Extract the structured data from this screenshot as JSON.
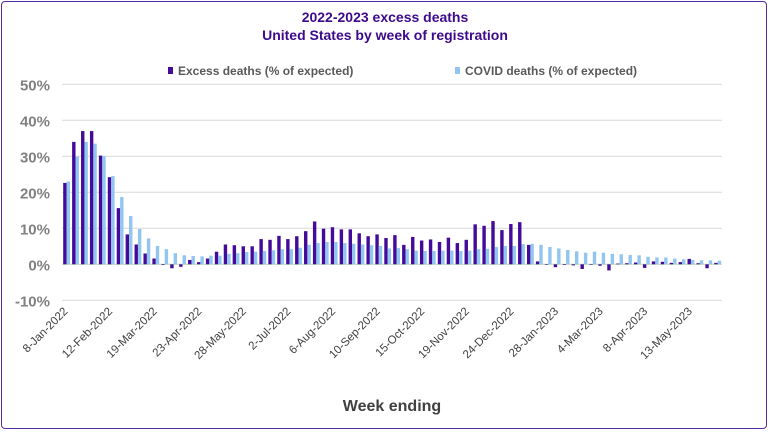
{
  "chart_data": {
    "type": "bar",
    "title": "2022-2023 excess deaths",
    "subtitle": "United States by week of registration",
    "xlabel": "Week ending",
    "ylabel": "",
    "ylim": [
      -10,
      50
    ],
    "yticks": [
      "-10%",
      "0%",
      "10%",
      "20%",
      "30%",
      "40%",
      "50%"
    ],
    "ytick_values": [
      -10,
      0,
      10,
      20,
      30,
      40,
      50
    ],
    "grid": true,
    "legend": "top-center",
    "xtick_every": 5,
    "categories": [
      "8-Jan-2022",
      "15-Jan-2022",
      "22-Jan-2022",
      "29-Jan-2022",
      "5-Feb-2022",
      "12-Feb-2022",
      "19-Feb-2022",
      "26-Feb-2022",
      "5-Mar-2022",
      "12-Mar-2022",
      "19-Mar-2022",
      "26-Mar-2022",
      "2-Apr-2022",
      "9-Apr-2022",
      "16-Apr-2022",
      "23-Apr-2022",
      "30-Apr-2022",
      "7-May-2022",
      "14-May-2022",
      "21-May-2022",
      "28-May-2022",
      "4-Jun-2022",
      "11-Jun-2022",
      "18-Jun-2022",
      "25-Jun-2022",
      "2-Jul-2022",
      "9-Jul-2022",
      "16-Jul-2022",
      "23-Jul-2022",
      "30-Jul-2022",
      "6-Aug-2022",
      "13-Aug-2022",
      "20-Aug-2022",
      "27-Aug-2022",
      "3-Sep-2022",
      "10-Sep-2022",
      "17-Sep-2022",
      "24-Sep-2022",
      "1-Oct-2022",
      "8-Oct-2022",
      "15-Oct-2022",
      "22-Oct-2022",
      "29-Oct-2022",
      "5-Nov-2022",
      "12-Nov-2022",
      "19-Nov-2022",
      "26-Nov-2022",
      "3-Dec-2022",
      "10-Dec-2022",
      "17-Dec-2022",
      "24-Dec-2022",
      "31-Dec-2022",
      "7-Jan-2023",
      "14-Jan-2023",
      "21-Jan-2023",
      "28-Jan-2023",
      "4-Feb-2023",
      "11-Feb-2023",
      "18-Feb-2023",
      "25-Feb-2023",
      "4-Mar-2023",
      "11-Mar-2023",
      "18-Mar-2023",
      "25-Mar-2023",
      "1-Apr-2023",
      "8-Apr-2023",
      "15-Apr-2023",
      "22-Apr-2023",
      "29-Apr-2023",
      "6-May-2023",
      "13-May-2023",
      "20-May-2023",
      "27-May-2023",
      "3-Jun-2023"
    ],
    "series": [
      {
        "name": "Excess deaths (% of expected)",
        "color": "#440a9a",
        "values": [
          22.6,
          34.0,
          37.0,
          37.0,
          30.2,
          24.2,
          15.6,
          8.3,
          5.5,
          3.0,
          1.6,
          -0.2,
          -1.1,
          -0.7,
          1.2,
          0.6,
          1.6,
          3.5,
          5.5,
          5.3,
          5.0,
          5.0,
          7.0,
          6.8,
          7.9,
          7.0,
          7.8,
          9.2,
          11.9,
          9.9,
          10.3,
          9.7,
          9.7,
          8.6,
          7.8,
          8.3,
          7.3,
          8.1,
          5.4,
          7.6,
          6.6,
          6.9,
          6.2,
          7.4,
          5.9,
          6.8,
          11.1,
          10.7,
          12.0,
          9.5,
          11.2,
          11.7,
          5.4,
          0.8,
          0.0,
          -0.8,
          -0.2,
          -0.3,
          -1.3,
          0.0,
          -0.4,
          -1.7,
          0.2,
          0.3,
          0.5,
          -1.0,
          0.8,
          0.7,
          0.4,
          0.6,
          1.5,
          0.3,
          -1.1,
          0.4
        ]
      },
      {
        "name": "COVID deaths (% of expected)",
        "color": "#92c5f0",
        "values": [
          23.0,
          29.9,
          34.0,
          33.5,
          30.0,
          24.5,
          18.7,
          13.4,
          9.8,
          7.2,
          5.1,
          4.2,
          3.1,
          2.5,
          2.3,
          2.2,
          2.4,
          2.4,
          2.9,
          3.1,
          3.4,
          3.5,
          3.7,
          3.9,
          4.2,
          4.2,
          4.6,
          5.4,
          5.9,
          6.2,
          6.2,
          5.9,
          5.7,
          5.5,
          5.3,
          5.1,
          4.4,
          4.5,
          4.2,
          3.8,
          3.7,
          3.7,
          3.8,
          3.8,
          3.7,
          3.8,
          4.2,
          4.3,
          4.8,
          5.1,
          5.1,
          5.6,
          5.7,
          5.4,
          4.8,
          4.4,
          4.0,
          3.6,
          3.2,
          3.5,
          3.2,
          2.9,
          2.8,
          2.6,
          2.5,
          2.1,
          1.9,
          1.9,
          1.6,
          1.4,
          1.2,
          1.1,
          1.1,
          1.0
        ]
      }
    ]
  }
}
